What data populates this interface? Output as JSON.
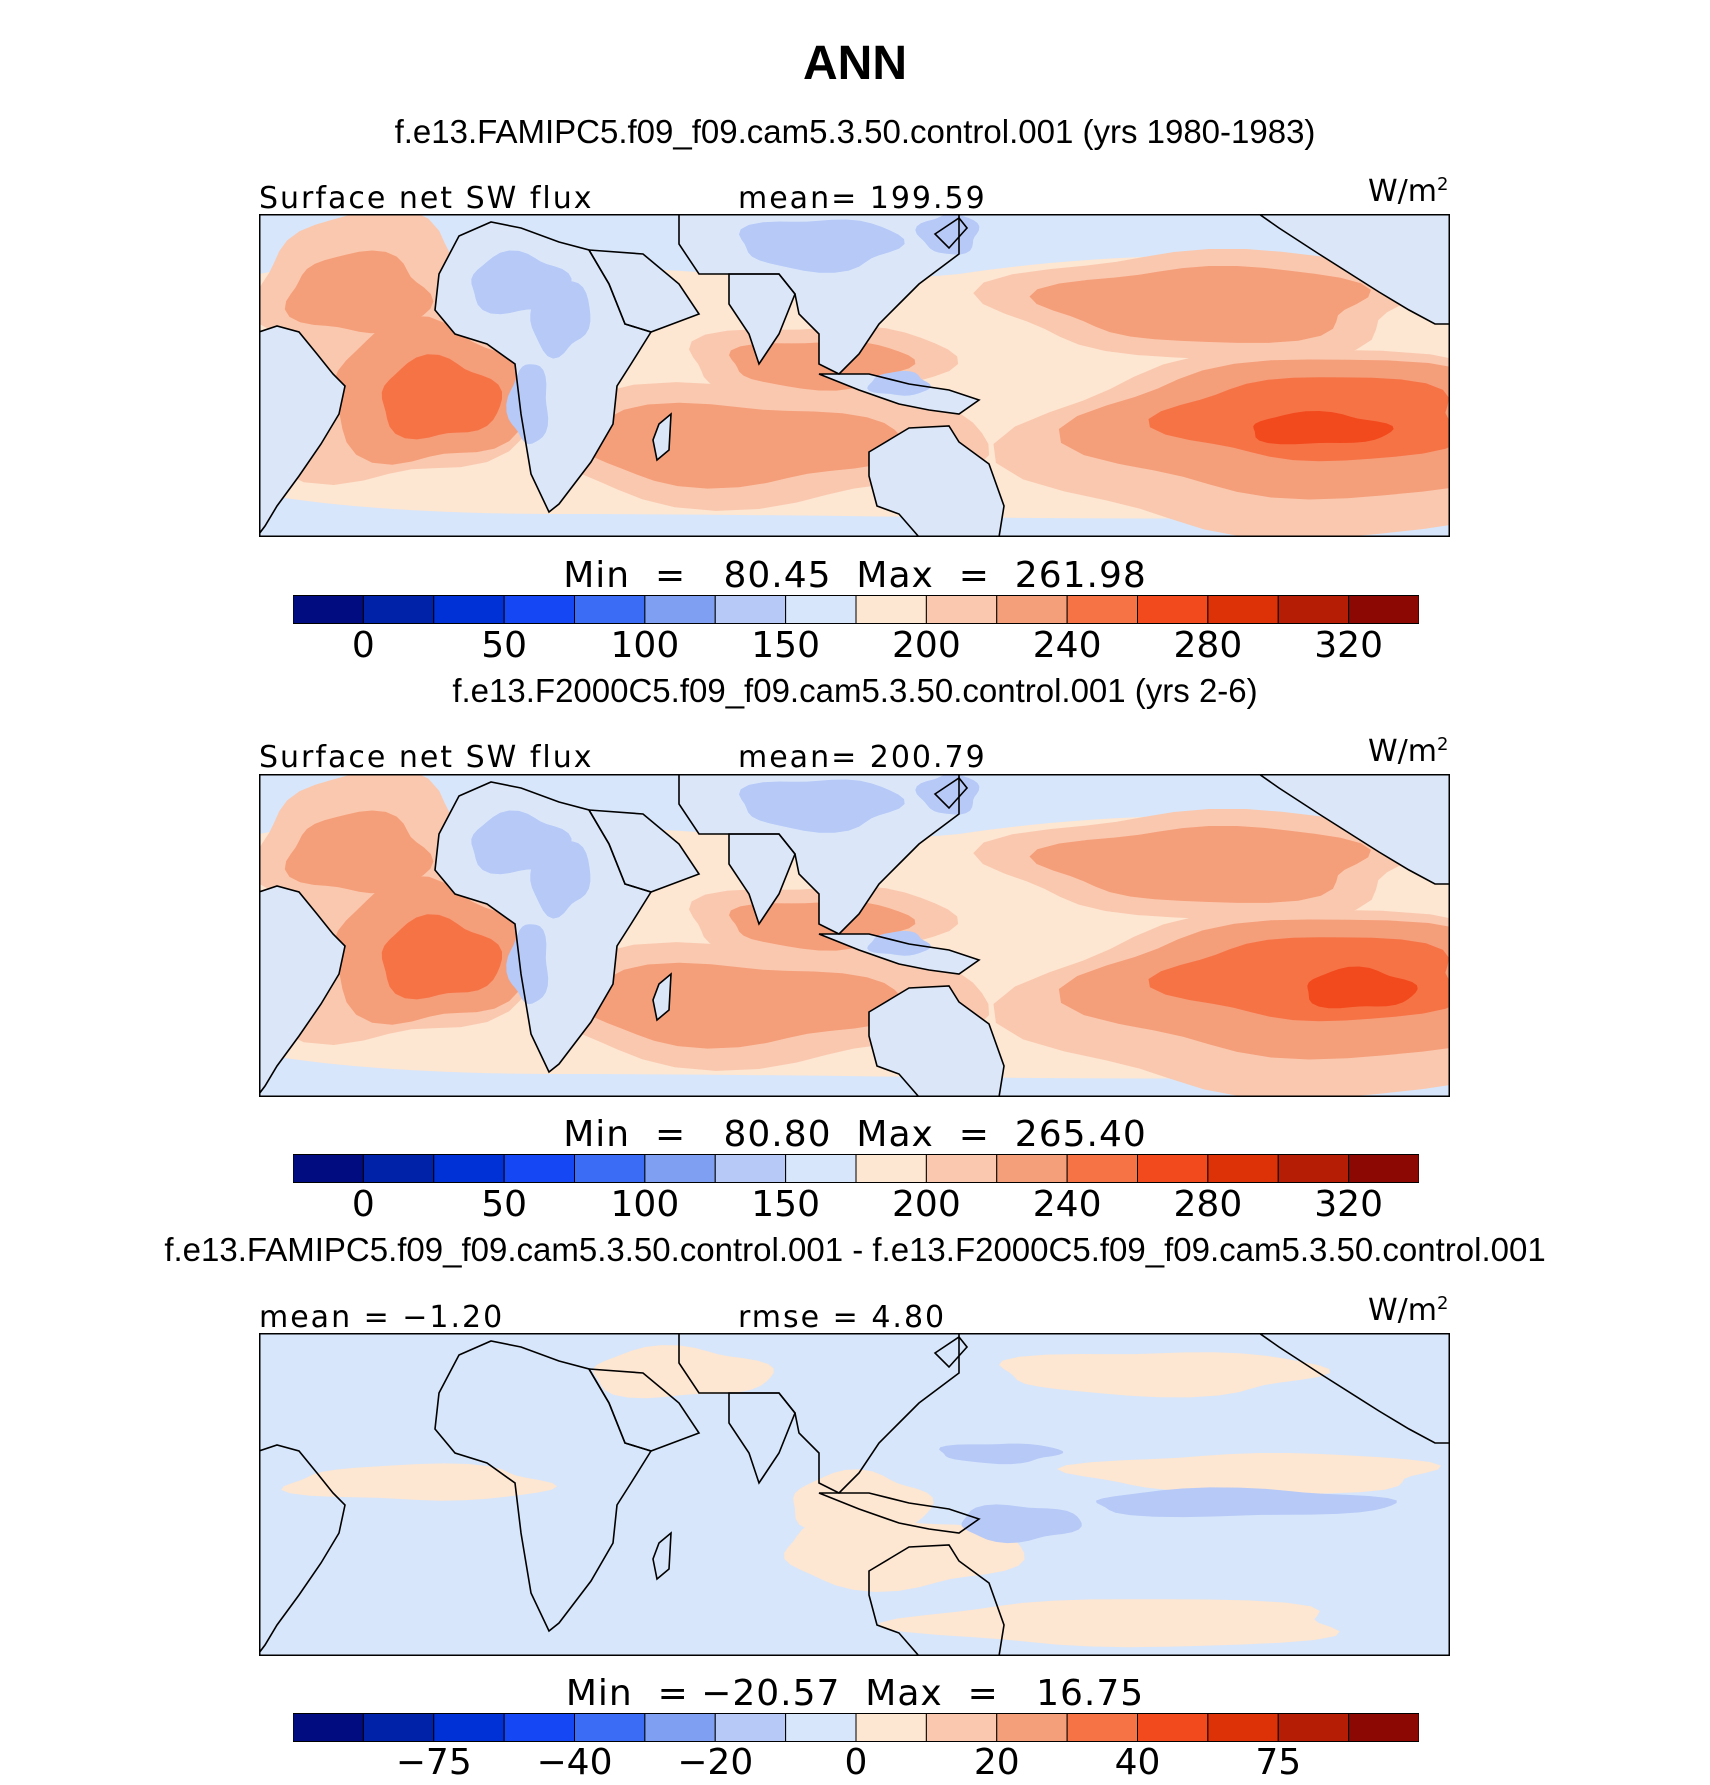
{
  "title": "ANN",
  "panels": [
    {
      "case_title": "f.e13.FAMIPC5.f09_f09.cam5.3.50.control.001 (yrs 1980-1983)",
      "left_label": "Surface net SW flux",
      "center_label": "mean= 199.59",
      "units": "W/m",
      "units_sup": "2",
      "min_max": "Min  =   80.45  Max  =  261.98",
      "colorbar_labels": [
        "0",
        "50",
        "100",
        "150",
        "200",
        "240",
        "280",
        "320"
      ]
    },
    {
      "case_title": "f.e13.F2000C5.f09_f09.cam5.3.50.control.001 (yrs 2-6)",
      "left_label": "Surface net SW flux",
      "center_label": "mean= 200.79",
      "units": "W/m",
      "units_sup": "2",
      "min_max": "Min  =   80.80  Max  =  265.40",
      "colorbar_labels": [
        "0",
        "50",
        "100",
        "150",
        "200",
        "240",
        "280",
        "320"
      ]
    },
    {
      "case_title": "f.e13.FAMIPC5.f09_f09.cam5.3.50.control.001 - f.e13.F2000C5.f09_f09.cam5.3.50.control.001",
      "left_label": "mean =   −1.20",
      "center_label": "rmse =    4.80",
      "units": "W/m",
      "units_sup": "2",
      "min_max": "Min  = −20.57  Max  =   16.75",
      "colorbar_labels": [
        "−75",
        "−40",
        "−20",
        "0",
        "20",
        "40",
        "75"
      ]
    }
  ],
  "colors": {
    "scale": [
      "#000c80",
      "#0022a8",
      "#0031d6",
      "#1547f5",
      "#3a6cf5",
      "#7fa0f2",
      "#b6c9f7",
      "#d7e6fa",
      "#fde6d2",
      "#fac8ae",
      "#f59e7a",
      "#f67346",
      "#f24a1d",
      "#dd3107",
      "#b51e05",
      "#8b0803"
    ]
  }
}
